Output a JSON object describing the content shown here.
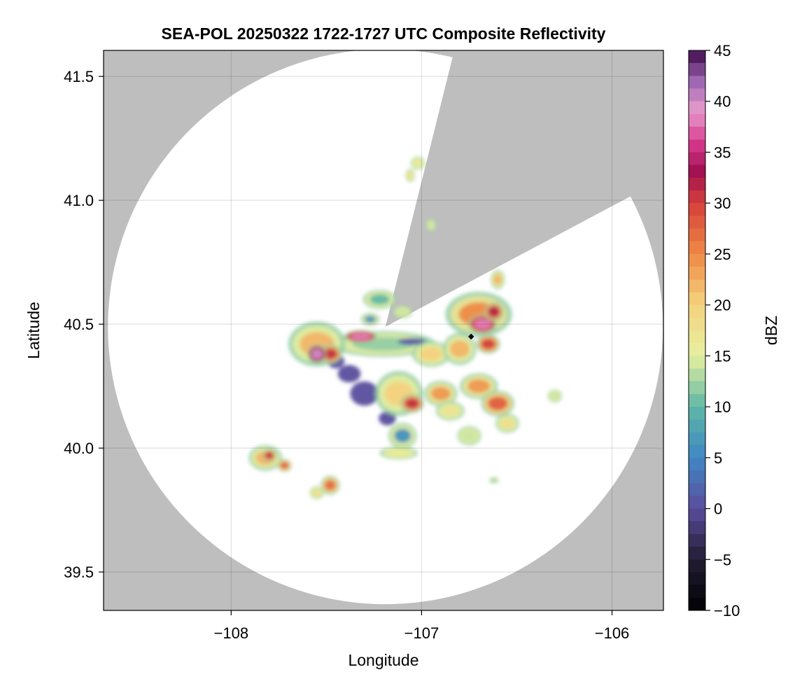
{
  "chart_data": {
    "type": "heatmap",
    "title": "SEA-POL 20250322 1722-1727 UTC Composite Reflectivity",
    "xlabel": "Longitude",
    "ylabel": "Latitude",
    "xlim": [
      -108.67,
      -105.73
    ],
    "ylim": [
      39.345,
      41.605
    ],
    "xticks": [
      -108,
      -107,
      -106
    ],
    "xtick_labels": [
      "−108",
      "−107",
      "−106"
    ],
    "yticks": [
      39.5,
      40.0,
      40.5,
      41.0,
      41.5
    ],
    "ytick_labels": [
      "39.5",
      "40.0",
      "40.5",
      "41.0",
      "41.5"
    ],
    "grid": true,
    "background_color": "#bebebe",
    "coverage_color": "#ffffff",
    "radar_site": {
      "lon": -107.19,
      "lat": 40.49
    },
    "coverage_radius_deg_lat": 1.12,
    "blocked_sectors_azimuth_deg": [
      [
        14,
        62
      ]
    ],
    "marker": {
      "lon": -106.74,
      "lat": 40.45,
      "color": "#000000"
    },
    "colorbar": {
      "label": "dBZ",
      "min": -10,
      "max": 45,
      "ticks": [
        -10,
        -5,
        0,
        5,
        10,
        15,
        20,
        25,
        30,
        35,
        40,
        45
      ],
      "tick_labels": [
        "−10",
        "−5",
        "0",
        "5",
        "10",
        "15",
        "20",
        "25",
        "30",
        "35",
        "40",
        "45"
      ],
      "colormap_stops": [
        {
          "value": -10,
          "color": "#000004"
        },
        {
          "value": -5,
          "color": "#221c33"
        },
        {
          "value": 0,
          "color": "#5a4e9c"
        },
        {
          "value": 5,
          "color": "#3f87c4"
        },
        {
          "value": 10,
          "color": "#5fb8a6"
        },
        {
          "value": 15,
          "color": "#e6f0a0"
        },
        {
          "value": 20,
          "color": "#f5d27e"
        },
        {
          "value": 25,
          "color": "#ee8a45"
        },
        {
          "value": 30,
          "color": "#d63f3a"
        },
        {
          "value": 33,
          "color": "#a11050"
        },
        {
          "value": 36,
          "color": "#d8398f"
        },
        {
          "value": 39,
          "color": "#e79ccb"
        },
        {
          "value": 42,
          "color": "#9d66b3"
        },
        {
          "value": 45,
          "color": "#3d0a4a"
        }
      ]
    },
    "echoes": [
      {
        "lon": -107.3,
        "lat": 40.22,
        "rx": 0.1,
        "ry": 0.07,
        "dbz": 0
      },
      {
        "lon": -107.38,
        "lat": 40.3,
        "rx": 0.08,
        "ry": 0.05,
        "dbz": 0
      },
      {
        "lon": -107.45,
        "lat": 40.35,
        "rx": 0.06,
        "ry": 0.04,
        "dbz": 0
      },
      {
        "lon": -107.18,
        "lat": 40.12,
        "rx": 0.06,
        "ry": 0.04,
        "dbz": 0
      },
      {
        "lon": -107.2,
        "lat": 40.42,
        "rx": 0.22,
        "ry": 0.04,
        "dbz": 12
      },
      {
        "lon": -107.05,
        "lat": 40.43,
        "rx": 0.1,
        "ry": 0.02,
        "dbz": 1
      },
      {
        "lon": -107.55,
        "lat": 40.42,
        "rx": 0.12,
        "ry": 0.07,
        "dbz": 22
      },
      {
        "lon": -107.48,
        "lat": 40.38,
        "rx": 0.05,
        "ry": 0.03,
        "dbz": 31
      },
      {
        "lon": -107.55,
        "lat": 40.38,
        "rx": 0.04,
        "ry": 0.03,
        "dbz": 40
      },
      {
        "lon": -107.32,
        "lat": 40.45,
        "rx": 0.07,
        "ry": 0.02,
        "dbz": 38
      },
      {
        "lon": -107.12,
        "lat": 40.22,
        "rx": 0.1,
        "ry": 0.07,
        "dbz": 20
      },
      {
        "lon": -107.05,
        "lat": 40.18,
        "rx": 0.05,
        "ry": 0.03,
        "dbz": 31
      },
      {
        "lon": -106.9,
        "lat": 40.22,
        "rx": 0.07,
        "ry": 0.04,
        "dbz": 24
      },
      {
        "lon": -106.85,
        "lat": 40.15,
        "rx": 0.06,
        "ry": 0.03,
        "dbz": 17
      },
      {
        "lon": -107.1,
        "lat": 40.05,
        "rx": 0.06,
        "ry": 0.04,
        "dbz": 6
      },
      {
        "lon": -107.12,
        "lat": 39.98,
        "rx": 0.08,
        "ry": 0.02,
        "dbz": 16
      },
      {
        "lon": -106.95,
        "lat": 40.38,
        "rx": 0.08,
        "ry": 0.04,
        "dbz": 20
      },
      {
        "lon": -106.8,
        "lat": 40.4,
        "rx": 0.07,
        "ry": 0.05,
        "dbz": 22
      },
      {
        "lon": -106.7,
        "lat": 40.54,
        "rx": 0.14,
        "ry": 0.07,
        "dbz": 25
      },
      {
        "lon": -106.68,
        "lat": 40.5,
        "rx": 0.06,
        "ry": 0.03,
        "dbz": 38
      },
      {
        "lon": -106.62,
        "lat": 40.55,
        "rx": 0.04,
        "ry": 0.03,
        "dbz": 32
      },
      {
        "lon": -106.65,
        "lat": 40.42,
        "rx": 0.05,
        "ry": 0.03,
        "dbz": 30
      },
      {
        "lon": -106.7,
        "lat": 40.25,
        "rx": 0.08,
        "ry": 0.04,
        "dbz": 24
      },
      {
        "lon": -106.6,
        "lat": 40.18,
        "rx": 0.07,
        "ry": 0.04,
        "dbz": 28
      },
      {
        "lon": -106.55,
        "lat": 40.1,
        "rx": 0.05,
        "ry": 0.03,
        "dbz": 18
      },
      {
        "lon": -106.75,
        "lat": 40.05,
        "rx": 0.05,
        "ry": 0.03,
        "dbz": 14
      },
      {
        "lon": -106.6,
        "lat": 40.68,
        "rx": 0.03,
        "ry": 0.03,
        "dbz": 22
      },
      {
        "lon": -107.22,
        "lat": 40.6,
        "rx": 0.07,
        "ry": 0.03,
        "dbz": 10
      },
      {
        "lon": -107.27,
        "lat": 40.52,
        "rx": 0.04,
        "ry": 0.02,
        "dbz": 6
      },
      {
        "lon": -107.02,
        "lat": 41.15,
        "rx": 0.03,
        "ry": 0.02,
        "dbz": 16
      },
      {
        "lon": -106.95,
        "lat": 40.9,
        "rx": 0.02,
        "ry": 0.02,
        "dbz": 14
      },
      {
        "lon": -107.06,
        "lat": 41.1,
        "rx": 0.02,
        "ry": 0.02,
        "dbz": 18
      },
      {
        "lon": -107.82,
        "lat": 39.96,
        "rx": 0.07,
        "ry": 0.04,
        "dbz": 22
      },
      {
        "lon": -107.8,
        "lat": 39.97,
        "rx": 0.03,
        "ry": 0.02,
        "dbz": 31
      },
      {
        "lon": -107.72,
        "lat": 39.93,
        "rx": 0.03,
        "ry": 0.02,
        "dbz": 28
      },
      {
        "lon": -107.48,
        "lat": 39.85,
        "rx": 0.04,
        "ry": 0.03,
        "dbz": 27
      },
      {
        "lon": -107.55,
        "lat": 39.82,
        "rx": 0.03,
        "ry": 0.02,
        "dbz": 18
      },
      {
        "lon": -106.3,
        "lat": 40.21,
        "rx": 0.03,
        "ry": 0.02,
        "dbz": 14
      },
      {
        "lon": -106.62,
        "lat": 39.87,
        "rx": 0.02,
        "ry": 0.01,
        "dbz": 12
      },
      {
        "lon": -107.1,
        "lat": 40.55,
        "rx": 0.04,
        "ry": 0.02,
        "dbz": 14
      }
    ]
  }
}
